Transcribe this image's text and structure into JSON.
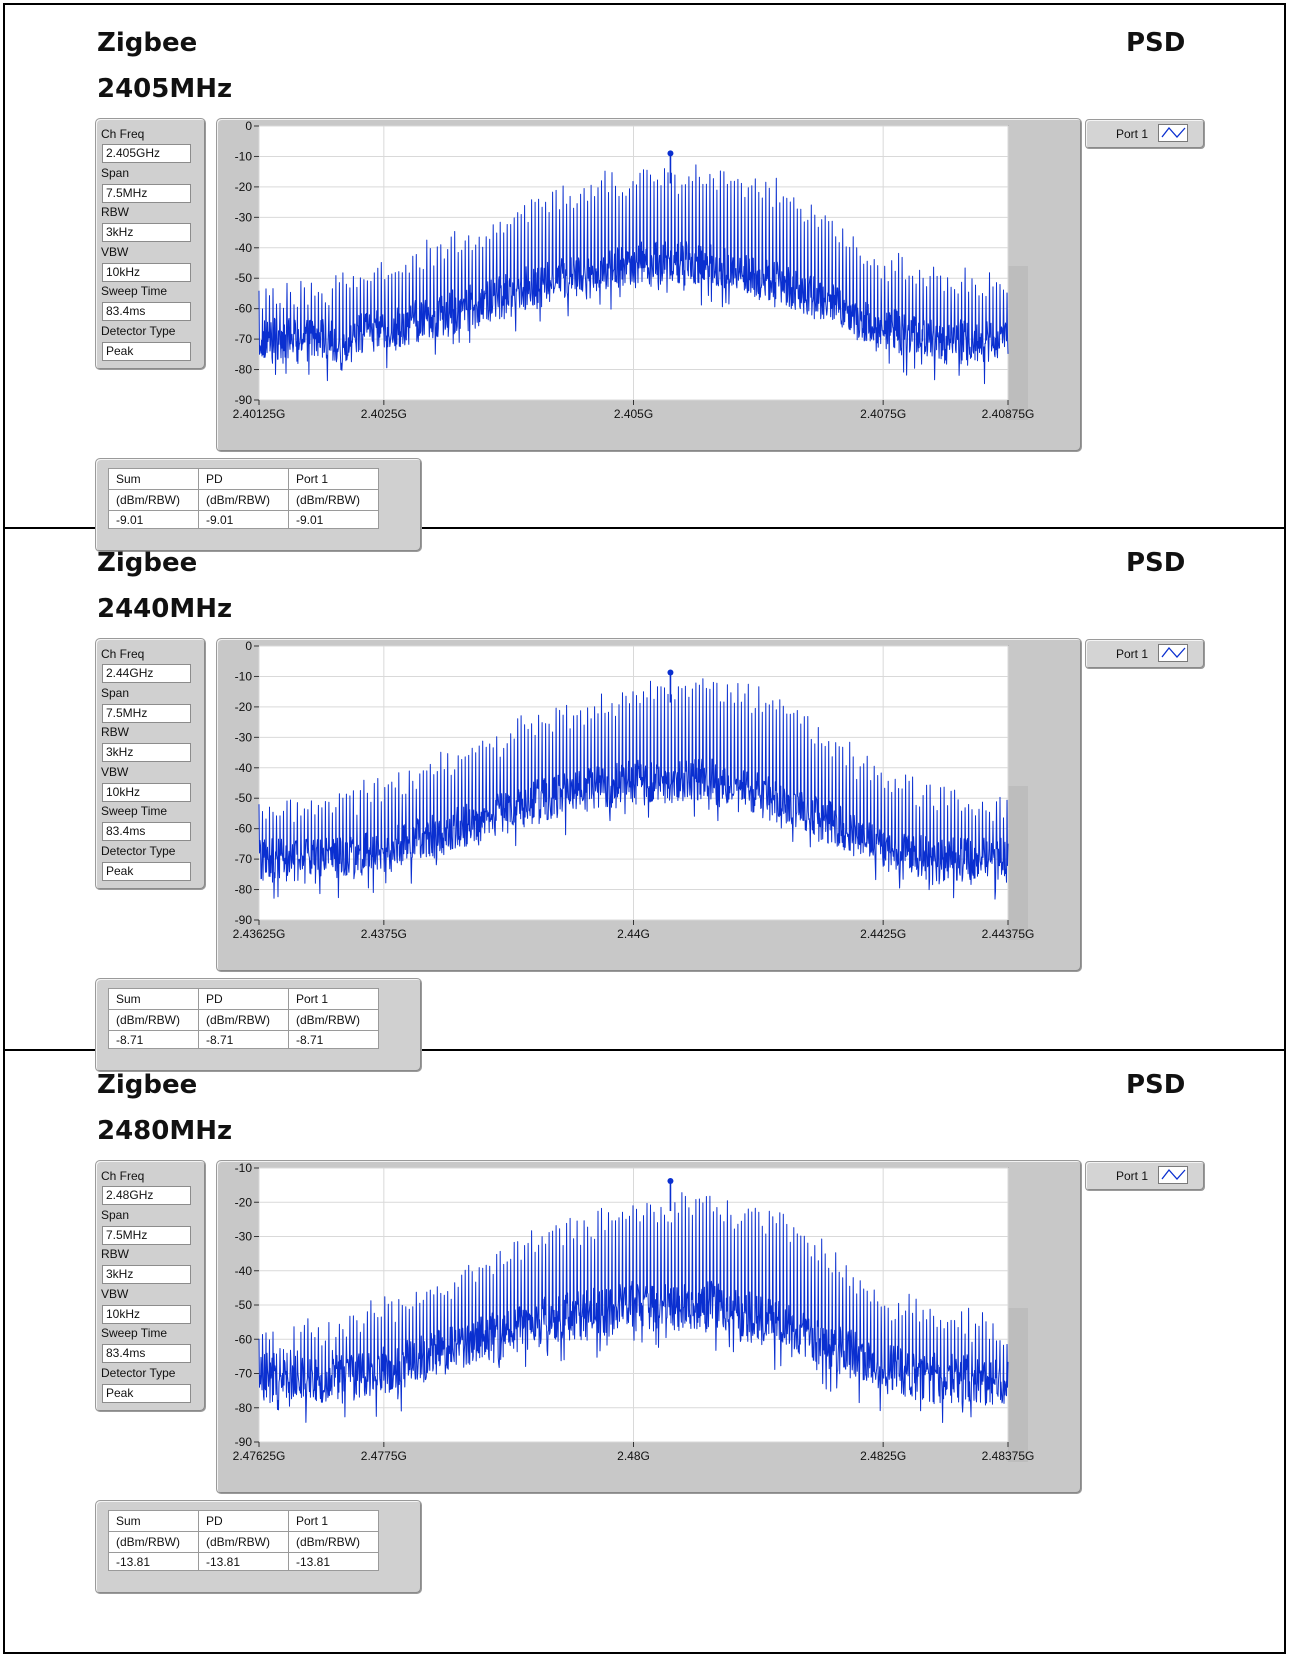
{
  "panels": [
    {
      "label": "Zigbee",
      "freq_title": "2405MHz",
      "measurement": "PSD",
      "params": [
        {
          "label": "Ch Freq",
          "value": "2.405GHz"
        },
        {
          "label": "Span",
          "value": "7.5MHz"
        },
        {
          "label": "RBW",
          "value": "3kHz"
        },
        {
          "label": "VBW",
          "value": "10kHz"
        },
        {
          "label": "Sweep Time",
          "value": "83.4ms"
        },
        {
          "label": "Detector Type",
          "value": "Peak"
        }
      ],
      "legend": "Port 1",
      "table": {
        "headers": [
          "Sum",
          "PD",
          "Port 1"
        ],
        "units": [
          "(dBm/RBW)",
          "(dBm/RBW)",
          "(dBm/RBW)"
        ],
        "values": [
          "-9.01",
          "-9.01",
          "-9.01"
        ]
      }
    },
    {
      "label": "Zigbee",
      "freq_title": "2440MHz",
      "measurement": "PSD",
      "params": [
        {
          "label": "Ch Freq",
          "value": "2.44GHz"
        },
        {
          "label": "Span",
          "value": "7.5MHz"
        },
        {
          "label": "RBW",
          "value": "3kHz"
        },
        {
          "label": "VBW",
          "value": "10kHz"
        },
        {
          "label": "Sweep Time",
          "value": "83.4ms"
        },
        {
          "label": "Detector Type",
          "value": "Peak"
        }
      ],
      "legend": "Port 1",
      "table": {
        "headers": [
          "Sum",
          "PD",
          "Port 1"
        ],
        "units": [
          "(dBm/RBW)",
          "(dBm/RBW)",
          "(dBm/RBW)"
        ],
        "values": [
          "-8.71",
          "-8.71",
          "-8.71"
        ]
      }
    },
    {
      "label": "Zigbee",
      "freq_title": "2480MHz",
      "measurement": "PSD",
      "params": [
        {
          "label": "Ch Freq",
          "value": "2.48GHz"
        },
        {
          "label": "Span",
          "value": "7.5MHz"
        },
        {
          "label": "RBW",
          "value": "3kHz"
        },
        {
          "label": "VBW",
          "value": "10kHz"
        },
        {
          "label": "Sweep Time",
          "value": "83.4ms"
        },
        {
          "label": "Detector Type",
          "value": "Peak"
        }
      ],
      "legend": "Port 1",
      "table": {
        "headers": [
          "Sum",
          "PD",
          "Port 1"
        ],
        "units": [
          "(dBm/RBW)",
          "(dBm/RBW)",
          "(dBm/RBW)"
        ],
        "values": [
          "-13.81",
          "-13.81",
          "-13.81"
        ]
      }
    }
  ],
  "colors": {
    "trace": "#0a2fd0",
    "grid": "#d9d9d9",
    "plot_bg": "#ffffff",
    "frame": "#c8c8c8"
  },
  "chart_data": [
    {
      "type": "line",
      "xlabel": "",
      "ylabel": "",
      "x_ticks": [
        "2.40125G",
        "2.4025G",
        "2.405G",
        "2.4075G",
        "2.40875G"
      ],
      "x_tick_values": [
        2.40125,
        2.4025,
        2.405,
        2.4075,
        2.40875
      ],
      "xlim": [
        2.40125,
        2.40875
      ],
      "y_ticks": [
        0,
        -10,
        -20,
        -30,
        -40,
        -50,
        -60,
        -70,
        -80,
        -90
      ],
      "ylim": [
        -90,
        0
      ],
      "grid": true,
      "series": [
        {
          "name": "Port 1",
          "envelope_x": [
            2.40125,
            2.402,
            2.4025,
            2.4035,
            2.404,
            2.405,
            2.4058,
            2.4065,
            2.4075,
            2.408,
            2.40875
          ],
          "envelope_floor_y": [
            -70,
            -70,
            -67,
            -58,
            -52,
            -45,
            -45,
            -52,
            -66,
            -70,
            -71
          ],
          "envelope_peak_y": [
            -53,
            -50,
            -44,
            -32,
            -22,
            -14,
            -12,
            -18,
            -42,
            -46,
            -51
          ],
          "peak_marker": {
            "x": 2.40537,
            "y": -9.01
          }
        }
      ]
    },
    {
      "type": "line",
      "xlabel": "",
      "ylabel": "",
      "x_ticks": [
        "2.43625G",
        "2.4375G",
        "2.44G",
        "2.4425G",
        "2.44375G"
      ],
      "x_tick_values": [
        2.43625,
        2.4375,
        2.44,
        2.4425,
        2.44375
      ],
      "xlim": [
        2.43625,
        2.44375
      ],
      "y_ticks": [
        0,
        -10,
        -20,
        -30,
        -40,
        -50,
        -60,
        -70,
        -80,
        -90
      ],
      "ylim": [
        -90,
        0
      ],
      "grid": true,
      "series": [
        {
          "name": "Port 1",
          "envelope_x": [
            2.43625,
            2.437,
            2.4375,
            2.4385,
            2.439,
            2.44,
            2.4408,
            2.4415,
            2.4425,
            2.443,
            2.44375
          ],
          "envelope_floor_y": [
            -70,
            -70,
            -67,
            -57,
            -51,
            -44,
            -44,
            -51,
            -66,
            -70,
            -70
          ],
          "envelope_peak_y": [
            -52,
            -49,
            -43,
            -31,
            -21,
            -13,
            -11,
            -17,
            -41,
            -45,
            -50
          ],
          "peak_marker": {
            "x": 2.44037,
            "y": -8.71
          }
        }
      ]
    },
    {
      "type": "line",
      "xlabel": "",
      "ylabel": "",
      "x_ticks": [
        "2.47625G",
        "2.4775G",
        "2.48G",
        "2.4825G",
        "2.48375G"
      ],
      "x_tick_values": [
        2.47625,
        2.4775,
        2.48,
        2.4825,
        2.48375
      ],
      "xlim": [
        2.47625,
        2.48375
      ],
      "y_ticks": [
        -10,
        -20,
        -30,
        -40,
        -50,
        -60,
        -70,
        -80,
        -90
      ],
      "ylim": [
        -90,
        -10
      ],
      "grid": true,
      "series": [
        {
          "name": "Port 1",
          "envelope_x": [
            2.47625,
            2.477,
            2.4775,
            2.4785,
            2.479,
            2.48,
            2.4808,
            2.4815,
            2.4825,
            2.483,
            2.48375
          ],
          "envelope_floor_y": [
            -71,
            -71,
            -69,
            -60,
            -55,
            -50,
            -50,
            -56,
            -68,
            -71,
            -72
          ],
          "envelope_peak_y": [
            -57,
            -54,
            -48,
            -36,
            -27,
            -19,
            -18,
            -23,
            -45,
            -50,
            -55
          ],
          "peak_marker": {
            "x": 2.48037,
            "y": -13.81
          }
        }
      ]
    }
  ]
}
